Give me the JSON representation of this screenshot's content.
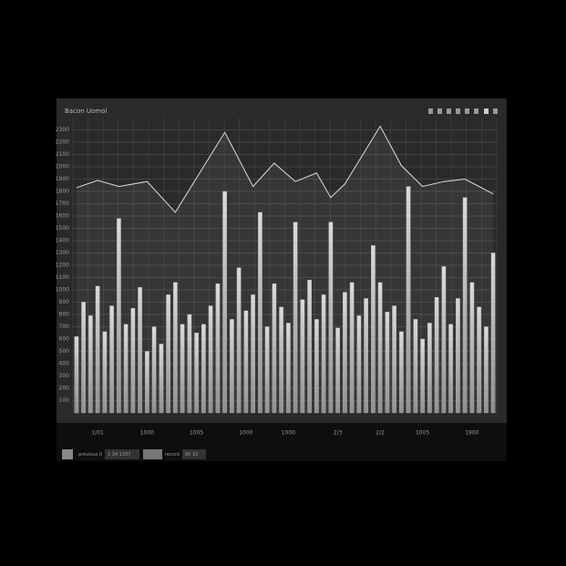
{
  "chart_data": [
    {
      "type": "bar",
      "title": "Bacon Uomol",
      "color": "#b8b8b8",
      "categories": [
        null,
        null,
        null,
        "1/01",
        null,
        null,
        null,
        null,
        null,
        null,
        "1000",
        null,
        null,
        null,
        null,
        null,
        null,
        "1005",
        null,
        null,
        null,
        null,
        null,
        null,
        "1000",
        null,
        null,
        null,
        null,
        null,
        "1000",
        null,
        null,
        null,
        null,
        null,
        null,
        "2/3",
        null,
        null,
        null,
        null,
        null,
        "2/2",
        null,
        null,
        null,
        null,
        null,
        "1005",
        null,
        null,
        null,
        null,
        null,
        null,
        "1900",
        null,
        null,
        null
      ],
      "values": [
        620,
        900,
        790,
        1030,
        660,
        870,
        1580,
        720,
        850,
        1020,
        500,
        700,
        560,
        960,
        1060,
        720,
        800,
        650,
        720,
        870,
        1050,
        1800,
        760,
        1180,
        830,
        960,
        1630,
        700,
        1050,
        860,
        730,
        1550,
        920,
        1080,
        760,
        960,
        1550,
        690,
        980,
        1060,
        790,
        930,
        1360,
        1060,
        820,
        870,
        660,
        1840,
        760,
        600,
        730,
        940,
        1190,
        720,
        930,
        1750,
        1060,
        860,
        700,
        1300
      ],
      "ylim": [
        0,
        2400
      ],
      "yticks": [
        100,
        200,
        300,
        400,
        500,
        600,
        700,
        800,
        900,
        1000,
        1100,
        1200,
        1300,
        1400,
        1500,
        1600,
        1700,
        1800,
        1900,
        2000,
        2100,
        2200,
        2300
      ],
      "grid": true
    },
    {
      "type": "line",
      "color": "#dddddd",
      "x": [
        0,
        3,
        6,
        10,
        14,
        21,
        25,
        28,
        31,
        34,
        36,
        38,
        43,
        46,
        49,
        52,
        55,
        59
      ],
      "values": [
        1830,
        1890,
        1840,
        1880,
        1630,
        2280,
        1840,
        2030,
        1880,
        1950,
        1750,
        1860,
        2330,
        2010,
        1840,
        1880,
        1900,
        1780
      ],
      "xlim": [
        -0.5,
        59.5
      ],
      "ylim": [
        0,
        2400
      ]
    }
  ],
  "toolbar": {
    "items": [
      "previous 0",
      "1 34 1337",
      "record",
      "60 10"
    ]
  }
}
